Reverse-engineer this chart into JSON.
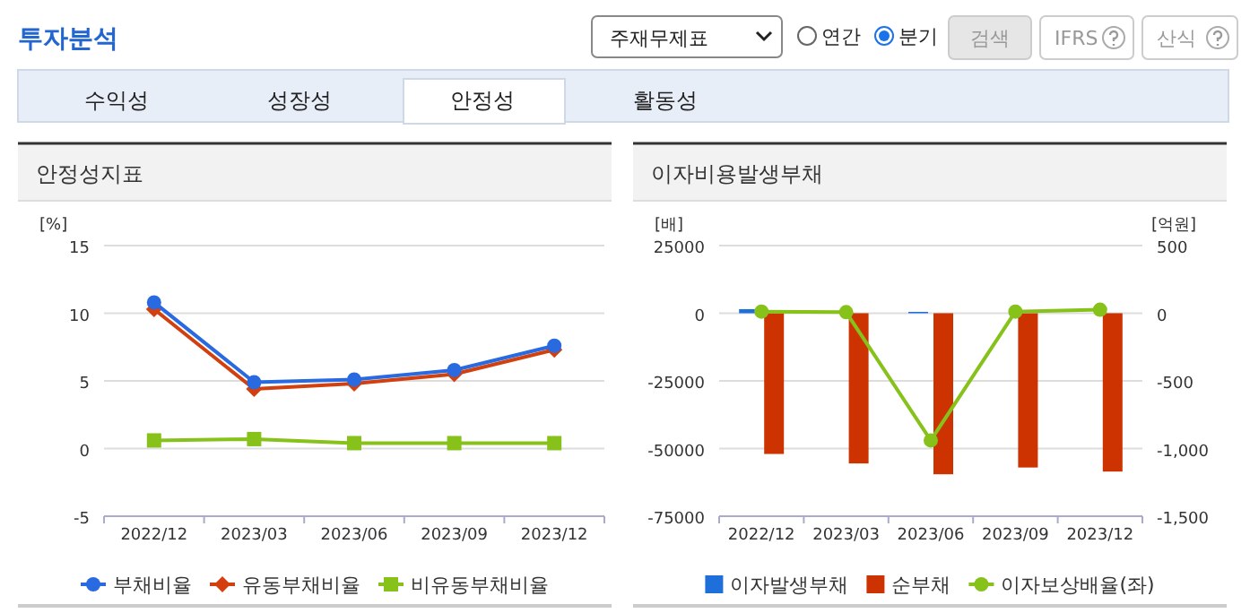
{
  "chart_data": [
    {
      "type": "other",
      "title": "투자분석",
      "annotations": [
        "주재무제표",
        "연간",
        "분기",
        "검색",
        "IFRS",
        "산식",
        "수익성",
        "성장성",
        "안정성",
        "활동성"
      ]
    },
    {
      "type": "line",
      "title": "안정성지표",
      "ylabel": "[%]",
      "categories": [
        "2022/12",
        "2023/03",
        "2023/06",
        "2023/09",
        "2023/12"
      ],
      "ylim": [
        -5,
        15
      ],
      "yticks": [
        -5,
        0,
        5,
        10,
        15
      ],
      "grid": "y",
      "legend": "bottom",
      "series": [
        {
          "name": "부채비율",
          "color": "#2a6ae0",
          "marker": "circle",
          "values": [
            10.8,
            4.9,
            5.1,
            5.8,
            7.6
          ]
        },
        {
          "name": "유동부채비율",
          "color": "#d3400f",
          "marker": "diamond",
          "values": [
            10.3,
            4.4,
            4.8,
            5.5,
            7.3
          ]
        },
        {
          "name": "비유동부채비율",
          "color": "#86c21a",
          "marker": "square",
          "values": [
            0.6,
            0.7,
            0.4,
            0.4,
            0.4
          ]
        }
      ]
    },
    {
      "type": "bar",
      "title": "이자비용발생부채",
      "ylabel": "[배]",
      "y2label": "[억원]",
      "categories": [
        "2022/12",
        "2023/03",
        "2023/06",
        "2023/09",
        "2023/12"
      ],
      "ylim": [
        -75000,
        25000
      ],
      "yticks": [
        -75000,
        -50000,
        -25000,
        0,
        25000
      ],
      "y2lim": [
        -1500,
        500
      ],
      "y2ticks": [
        {
          "value": -1500,
          "label": "-1,500"
        },
        {
          "value": -1000,
          "label": "-1,000"
        },
        -500,
        0,
        500
      ],
      "grid": "y",
      "legend": "bottom",
      "series": [
        {
          "name": "이자발생부채",
          "type": "bar",
          "axis": "y2",
          "color": "#1f6fdb",
          "values": [
            30,
            0,
            10,
            0,
            0
          ]
        },
        {
          "name": "순부채",
          "type": "bar",
          "axis": "y2",
          "color": "#cc3300",
          "values": [
            -1040,
            -1110,
            -1190,
            -1140,
            -1170
          ]
        },
        {
          "name": "이자보상배율(좌)",
          "type": "line",
          "axis": "y",
          "color": "#86c21a",
          "marker": "circle",
          "values": [
            600,
            400,
            -47000,
            600,
            1300
          ]
        }
      ]
    }
  ]
}
